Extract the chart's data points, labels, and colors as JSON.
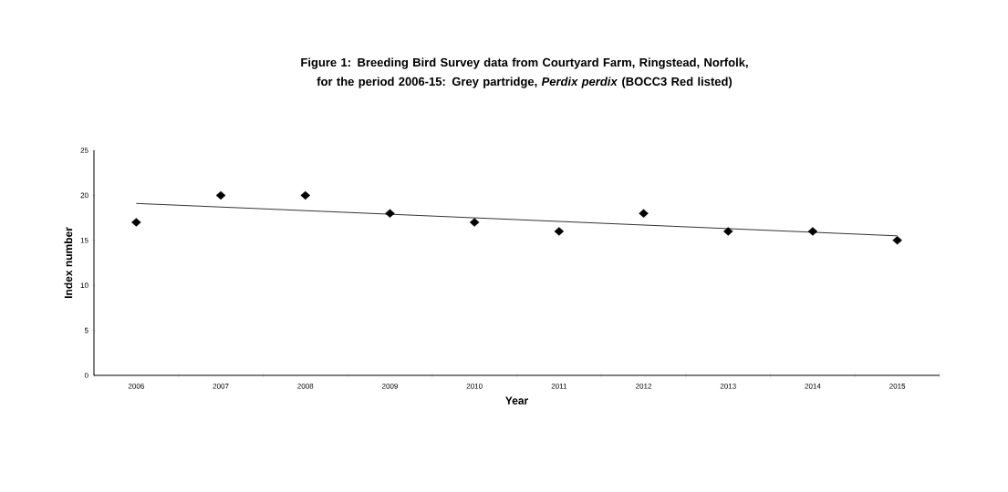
{
  "chart_data": {
    "type": "scatter",
    "title": "Figure 1: Breeding Bird Survey data from Courtyard Farm, Ringstead, Norfolk, for the period 2006-15: Grey partridge, *Perdix perdix* (BOCC3 Red listed)",
    "xlabel": "Year",
    "ylabel": "Index number",
    "x": [
      2006,
      2007,
      2008,
      2009,
      2010,
      2011,
      2012,
      2013,
      2014,
      2015
    ],
    "series": [
      {
        "color": "#000000",
        "marker": "diamond",
        "values": [
          17,
          20,
          20,
          18,
          17,
          16,
          18,
          16,
          16,
          15
        ]
      },
      {
        "type": "line",
        "color": "#000000",
        "marker": "none",
        "line_style": "solid",
        "x": [
          2006,
          2015
        ],
        "values": [
          19.1,
          15.5
        ]
      }
    ],
    "xlim": [
      2005.5,
      2015.5
    ],
    "xticks": [
      {
        "value": 2005.5,
        "label": null
      },
      2006,
      {
        "value": 2006.5,
        "label": null
      },
      2007,
      {
        "value": 2007.5,
        "label": null
      },
      2008,
      {
        "value": 2008.5,
        "label": null
      },
      2009,
      {
        "value": 2009.5,
        "label": null
      },
      2010,
      {
        "value": 2010.5,
        "label": null
      },
      2011,
      {
        "value": 2011.5,
        "label": null
      },
      2012,
      {
        "value": 2012.5,
        "label": null
      },
      2013,
      {
        "value": 2013.5,
        "label": null
      },
      2014,
      {
        "value": 2014.5,
        "label": null
      },
      2015,
      {
        "value": 2015.5,
        "label": null
      }
    ],
    "ylim": [
      0,
      25
    ],
    "yticks": [
      0,
      5,
      10,
      15,
      20,
      25
    ],
    "grid": false
  }
}
